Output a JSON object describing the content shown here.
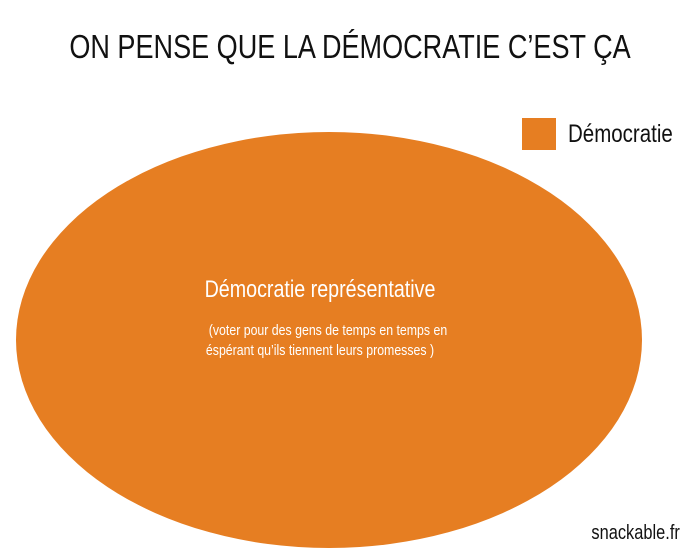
{
  "title": "ON PENSE QUE LA DÉMOCRATIE C’EST ÇA",
  "legend": {
    "label": "Démocratie",
    "color": "#e67e22"
  },
  "diagram": {
    "fill_color": "#e67e22",
    "main_label": "Démocratie représentative",
    "sub_line_1": "(voter pour des gens de temps en temps en",
    "sub_line_2": "éspérant qu’ils tiennent leurs promesses )"
  },
  "credit": "snackable.fr"
}
